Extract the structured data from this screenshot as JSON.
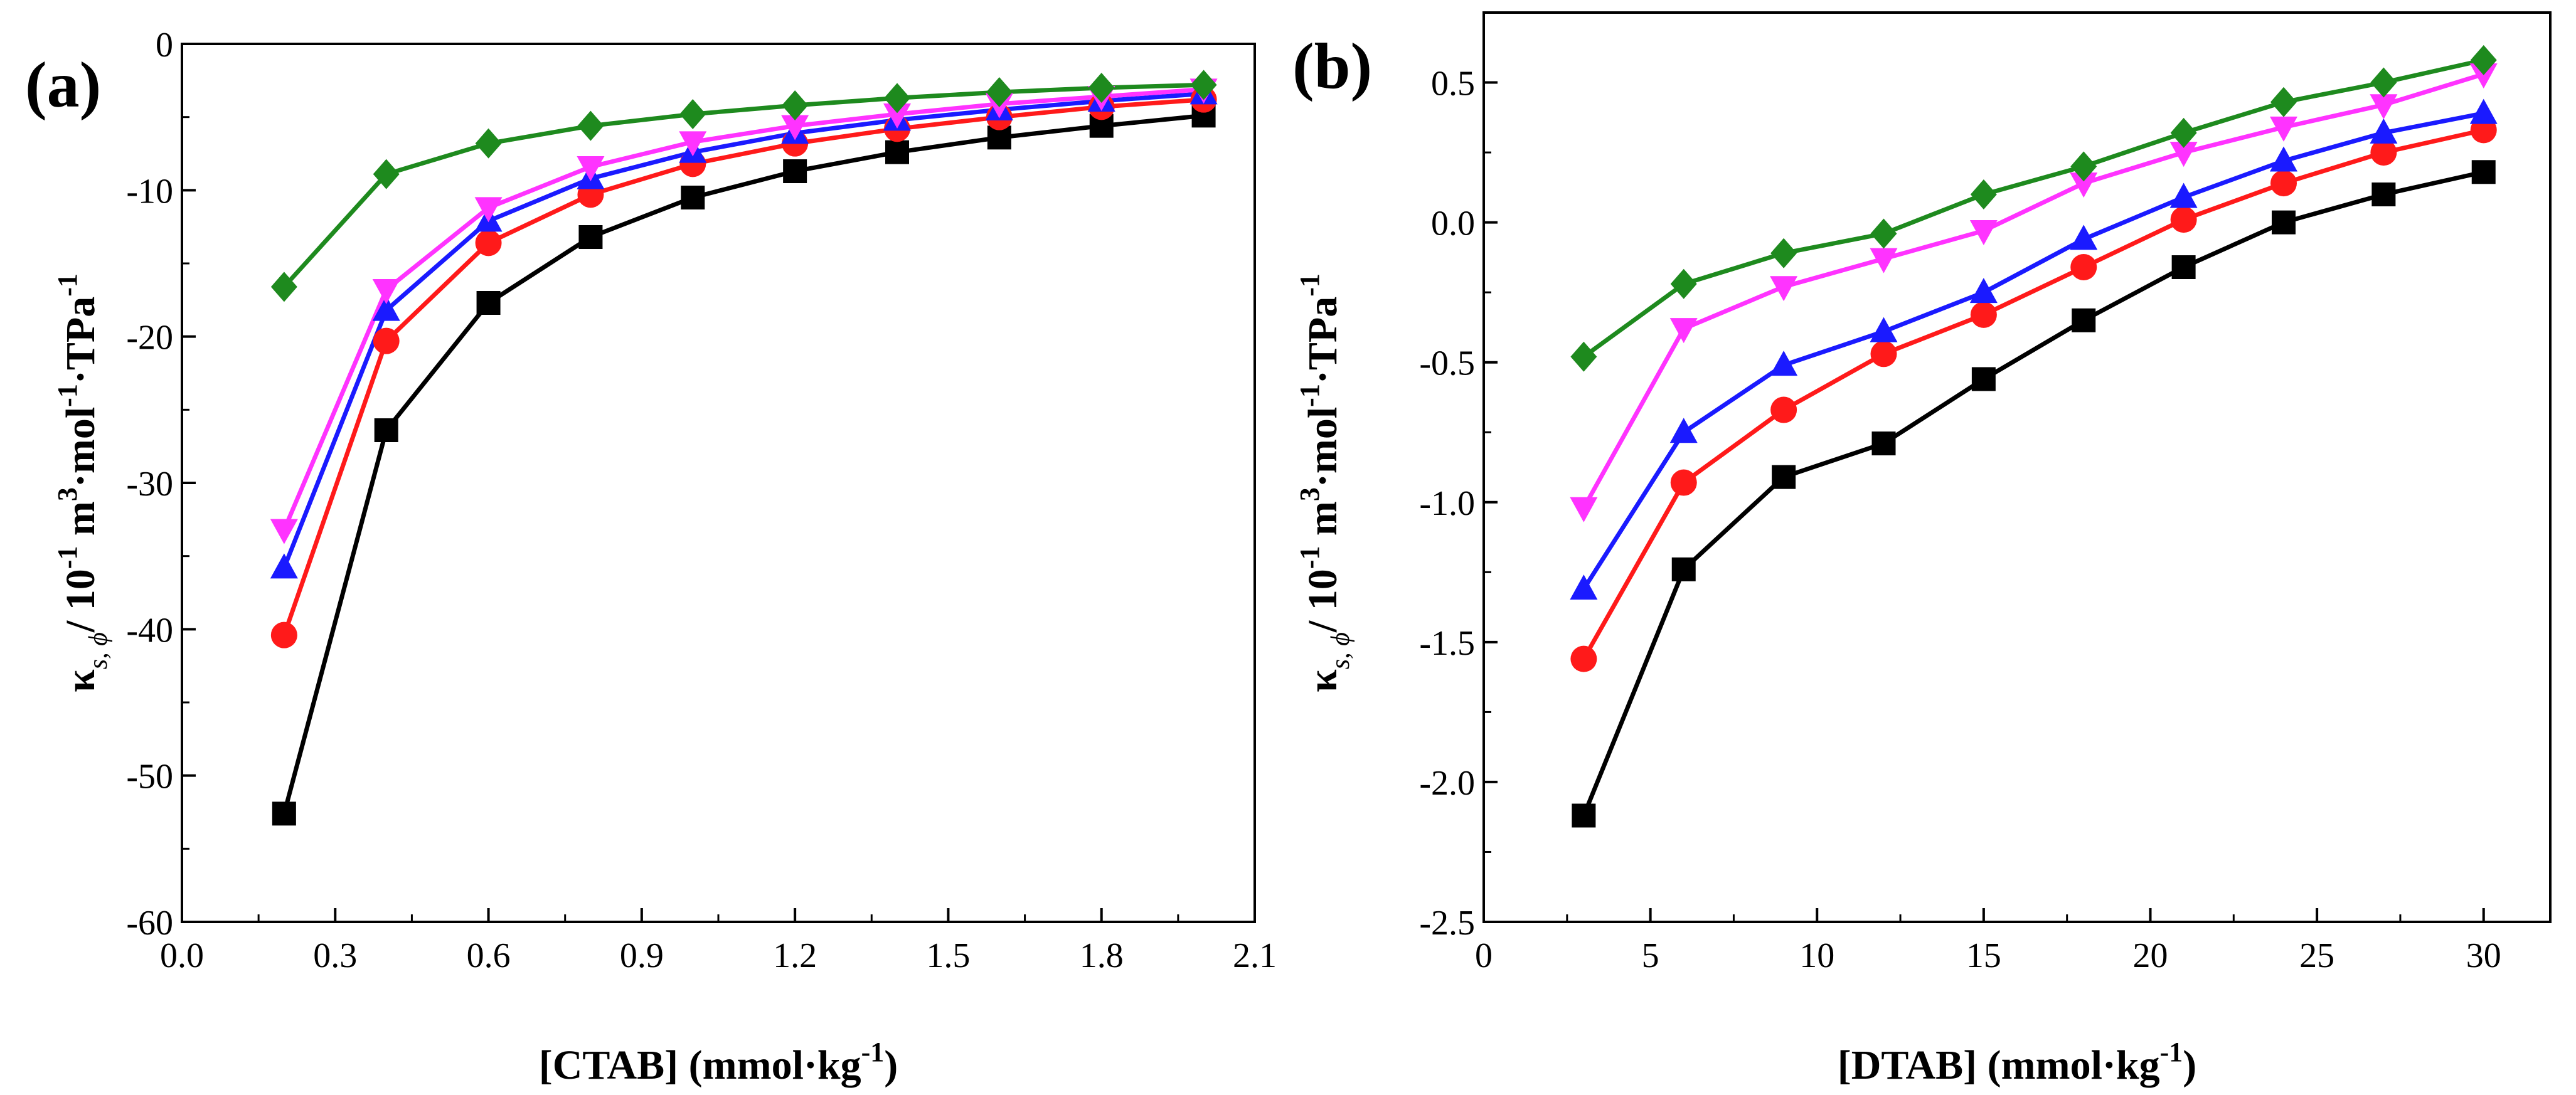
{
  "chart_data": [
    {
      "panel_label": "(a)",
      "type": "line",
      "xlabel": "[CTAB] (mmol·kg",
      "xlabel_sup": "-1",
      "xlabel_end": ")",
      "ylabel": {
        "kappa": "κ",
        "sub": "s, ϕ",
        "slash": "/ 10",
        "exp1": "-1",
        "unit1": " m",
        "exp3": "3",
        "unit2": "·mol",
        "exp4": "-1",
        "unit3": "·TPa",
        "exp5": "-1"
      },
      "xlim": [
        0.0,
        2.1
      ],
      "ylim": [
        -60,
        0
      ],
      "xticks": [
        "0.0",
        "0.3",
        "0.6",
        "0.9",
        "1.2",
        "1.5",
        "1.8",
        "2.1"
      ],
      "yticks": [
        "0",
        "-10",
        "-20",
        "-30",
        "-40",
        "-50",
        "-60"
      ],
      "x": [
        0.2,
        0.4,
        0.6,
        0.8,
        1.0,
        1.2,
        1.4,
        1.6,
        1.8,
        2.0
      ],
      "series": [
        {
          "name": "black squares",
          "color": "#000000",
          "marker": "square",
          "values": [
            -52.6,
            -26.4,
            -17.7,
            -13.2,
            -10.5,
            -8.7,
            -7.4,
            -6.4,
            -5.6,
            -4.9
          ]
        },
        {
          "name": "red circles",
          "color": "#ff1a1a",
          "marker": "circle",
          "values": [
            -40.4,
            -20.3,
            -13.6,
            -10.3,
            -8.2,
            -6.8,
            -5.8,
            -5.0,
            -4.3,
            -3.8
          ]
        },
        {
          "name": "blue up-triangles",
          "color": "#1a1aff",
          "marker": "triangle-up",
          "values": [
            -35.8,
            -18.2,
            -12.1,
            -9.2,
            -7.4,
            -6.1,
            -5.2,
            -4.5,
            -3.9,
            -3.4
          ]
        },
        {
          "name": "magenta down-triangles",
          "color": "#ff33ff",
          "marker": "triangle-down",
          "values": [
            -33.2,
            -16.8,
            -11.2,
            -8.4,
            -6.7,
            -5.6,
            -4.8,
            -4.1,
            -3.6,
            -3.1
          ]
        },
        {
          "name": "green diamonds",
          "color": "#1e8a1e",
          "marker": "diamond",
          "values": [
            -16.6,
            -8.9,
            -6.8,
            -5.6,
            -4.8,
            -4.2,
            -3.7,
            -3.3,
            -3.0,
            -2.8
          ]
        }
      ]
    },
    {
      "panel_label": "(b)",
      "type": "line",
      "xlabel": "[DTAB] (mmol·kg",
      "xlabel_sup": "-1",
      "xlabel_end": ")",
      "ylabel": {
        "kappa": "κ",
        "sub": "s, ϕ",
        "slash": "/ 10",
        "exp1": "-1",
        "unit1": " m",
        "exp3": "3",
        "unit2": "·mol",
        "exp4": "-1",
        "unit3": "·TPa",
        "exp5": "-1"
      },
      "xlim": [
        0,
        32
      ],
      "ylim": [
        -2.5,
        0.75
      ],
      "xticks": [
        "0",
        "5",
        "10",
        "15",
        "20",
        "25",
        "30"
      ],
      "xtick_values": [
        0,
        5,
        10,
        15,
        20,
        25,
        30
      ],
      "yticks": [
        "0.5",
        "0.0",
        "-0.5",
        "-1.0",
        "-1.5",
        "-2.0",
        "-2.5"
      ],
      "ytick_values": [
        0.5,
        0.0,
        -0.5,
        -1.0,
        -1.5,
        -2.0,
        -2.5
      ],
      "x": [
        3,
        6,
        9,
        12,
        15,
        18,
        21,
        24,
        27,
        30
      ],
      "series": [
        {
          "name": "black squares",
          "color": "#000000",
          "marker": "square",
          "values": [
            -2.12,
            -1.24,
            -0.91,
            -0.79,
            -0.56,
            -0.35,
            -0.16,
            0.0,
            0.1,
            0.18
          ]
        },
        {
          "name": "red circles",
          "color": "#ff1a1a",
          "marker": "circle",
          "values": [
            -1.56,
            -0.93,
            -0.67,
            -0.47,
            -0.33,
            -0.16,
            0.01,
            0.14,
            0.25,
            0.33
          ]
        },
        {
          "name": "blue up-triangles",
          "color": "#1a1aff",
          "marker": "triangle-up",
          "values": [
            -1.31,
            -0.75,
            -0.51,
            -0.39,
            -0.25,
            -0.06,
            0.09,
            0.22,
            0.32,
            0.39
          ]
        },
        {
          "name": "magenta down-triangles",
          "color": "#ff33ff",
          "marker": "triangle-down",
          "values": [
            -1.02,
            -0.38,
            -0.23,
            -0.13,
            -0.03,
            0.14,
            0.25,
            0.34,
            0.42,
            0.53
          ]
        },
        {
          "name": "green diamonds",
          "color": "#1e8a1e",
          "marker": "diamond",
          "values": [
            -0.48,
            -0.22,
            -0.11,
            -0.04,
            0.1,
            0.2,
            0.32,
            0.43,
            0.5,
            0.58
          ]
        }
      ]
    }
  ]
}
